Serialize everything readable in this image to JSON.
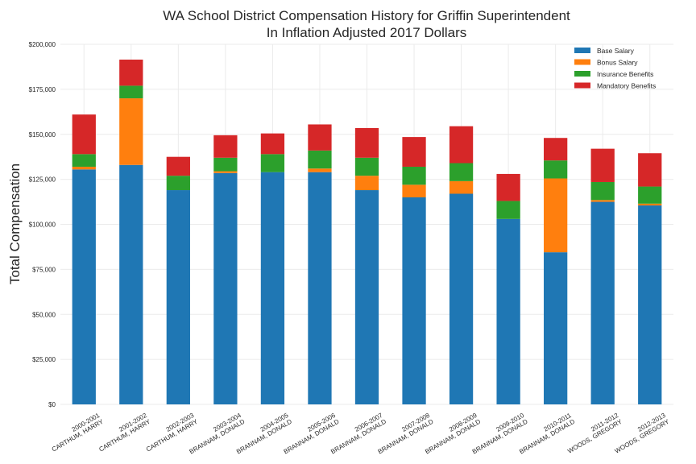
{
  "chart_data": {
    "type": "bar",
    "stacked": true,
    "title": "WA School District Compensation History for Griffin Superintendent",
    "subtitle": "In Inflation Adjusted 2017 Dollars",
    "xlabel": "",
    "ylabel": "Total Compensation",
    "ylim": [
      0,
      200000
    ],
    "yticks": [
      0,
      25000,
      50000,
      75000,
      100000,
      125000,
      150000,
      175000,
      200000
    ],
    "ytick_labels": [
      "$0",
      "$25,000",
      "$50,000",
      "$75,000",
      "$100,000",
      "$125,000",
      "$150,000",
      "$175,000",
      "$200,000"
    ],
    "grid": true,
    "legend_position": "top-right",
    "categories": [
      {
        "year": "2000-2001",
        "name": "CARTHUM, HARRY"
      },
      {
        "year": "2001-2002",
        "name": "CARTHUM, HARRY"
      },
      {
        "year": "2002-2003",
        "name": "CARTHUM, HARRY"
      },
      {
        "year": "2003-2004",
        "name": "BRANNAM, DONALD"
      },
      {
        "year": "2004-2005",
        "name": "BRANNAM, DONALD"
      },
      {
        "year": "2005-2006",
        "name": "BRANNAM, DONALD"
      },
      {
        "year": "2006-2007",
        "name": "BRANNAM, DONALD"
      },
      {
        "year": "2007-2008",
        "name": "BRANNAM, DONALD"
      },
      {
        "year": "2008-2009",
        "name": "BRANNAM, DONALD"
      },
      {
        "year": "2009-2010",
        "name": "BRANNAM, DONALD"
      },
      {
        "year": "2010-2011",
        "name": "BRANNAM, DONALD"
      },
      {
        "year": "2011-2012",
        "name": "WOODS, GREGORY"
      },
      {
        "year": "2012-2013",
        "name": "WOODS, GREGORY"
      }
    ],
    "series": [
      {
        "name": "Base Salary",
        "color": "#1f77b4",
        "values": [
          130500,
          133000,
          119000,
          128500,
          129000,
          129000,
          119000,
          115000,
          117000,
          103000,
          84500,
          112500,
          110500
        ]
      },
      {
        "name": "Bonus Salary",
        "color": "#ff7f0e",
        "values": [
          1500,
          37000,
          0,
          1000,
          0,
          2000,
          8000,
          7000,
          7000,
          0,
          41000,
          1000,
          1000
        ]
      },
      {
        "name": "Insurance Benefits",
        "color": "#2ca02c",
        "values": [
          7000,
          7000,
          8000,
          7500,
          10000,
          10000,
          10000,
          10000,
          10000,
          10000,
          10000,
          10000,
          9500
        ]
      },
      {
        "name": "Mandatory Benefits",
        "color": "#d62728",
        "values": [
          22000,
          14500,
          10500,
          12500,
          11500,
          14500,
          16500,
          16500,
          20500,
          15000,
          12500,
          18500,
          18500
        ]
      }
    ]
  }
}
